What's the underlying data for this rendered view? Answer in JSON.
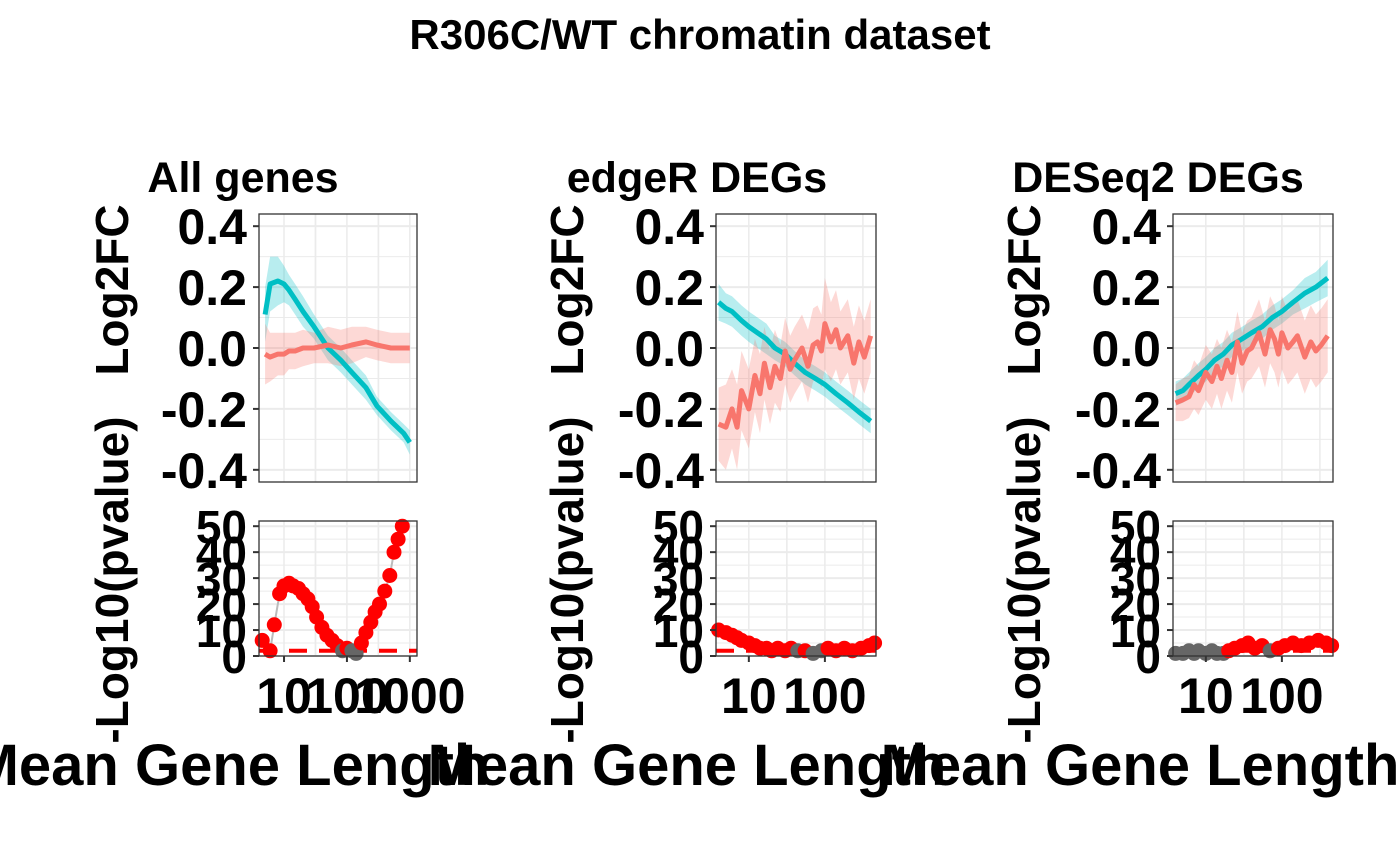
{
  "title": "R306C/WT chromatin dataset",
  "colors": {
    "cyan": "#00BFC4",
    "salmon": "#F8766D",
    "grid": "#EBEBEB",
    "sig_point": "#FF0000",
    "nonsig_point": "#666666",
    "threshold": "#FF0000",
    "panel_border": "#333333"
  },
  "labels": {
    "ylab_top": "Log2FC",
    "ylab_bottom": "-Log10(pvalue)",
    "xlab": "Mean Gene Length"
  },
  "chart_data": [
    {
      "type": "line",
      "subtitle": "All genes",
      "x_scale": "log10",
      "xlim": [
        4,
        1300
      ],
      "x_ticks": [
        10,
        100,
        1000
      ],
      "x_tick_labels": [
        "10",
        "100",
        "1000"
      ],
      "top": {
        "ylim": [
          -0.44,
          0.44
        ],
        "y_ticks": [
          -0.4,
          -0.2,
          0.0,
          0.2,
          0.4
        ],
        "y_tick_labels": [
          "-0.4",
          "-0.2",
          "0.0",
          "0.2",
          "0.4"
        ],
        "series": [
          {
            "color": "cyan",
            "x": [
              5,
              6,
              8,
              10,
              12,
              15,
              20,
              30,
              50,
              80,
              120,
              200,
              300,
              500,
              800,
              1000
            ],
            "y": [
              0.11,
              0.21,
              0.22,
              0.21,
              0.19,
              0.16,
              0.12,
              0.07,
              0.0,
              -0.04,
              -0.08,
              -0.13,
              -0.19,
              -0.24,
              -0.28,
              -0.31
            ],
            "band": [
              0.09,
              0.09,
              0.08,
              0.06,
              0.05,
              0.05,
              0.05,
              0.04,
              0.04,
              0.04,
              0.04,
              0.04,
              0.03,
              0.03,
              0.03,
              0.04
            ]
          },
          {
            "color": "salmon",
            "x": [
              5,
              6,
              8,
              10,
              12,
              15,
              20,
              30,
              50,
              80,
              120,
              200,
              300,
              500,
              800,
              1000
            ],
            "y": [
              -0.02,
              -0.03,
              -0.02,
              -0.02,
              -0.01,
              -0.01,
              0.0,
              0.0,
              0.01,
              0.0,
              0.01,
              0.02,
              0.01,
              0.0,
              0.0,
              0.0
            ],
            "band": [
              0.1,
              0.08,
              0.07,
              0.07,
              0.06,
              0.06,
              0.06,
              0.05,
              0.06,
              0.06,
              0.06,
              0.05,
              0.05,
              0.05,
              0.05,
              0.05
            ]
          }
        ]
      },
      "bottom": {
        "ylim": [
          0,
          52
        ],
        "y_ticks": [
          0,
          10,
          20,
          30,
          40,
          50
        ],
        "y_tick_labels": [
          "0",
          "10",
          "20",
          "30",
          "40",
          "50"
        ],
        "threshold": 2,
        "points": {
          "x": [
            4.5,
            6,
            7,
            8.5,
            10,
            12,
            14,
            17,
            20,
            24,
            28,
            33,
            40,
            48,
            58,
            70,
            85,
            100,
            120,
            140,
            170,
            200,
            240,
            280,
            330,
            400,
            480,
            560,
            650,
            760
          ],
          "y": [
            6,
            2,
            12,
            24,
            27,
            28,
            27,
            26,
            24,
            22,
            19,
            15,
            11,
            8,
            6,
            4,
            2,
            3,
            2,
            1,
            5,
            9,
            13,
            17,
            20,
            25,
            31,
            40,
            45,
            50
          ],
          "sig": [
            true,
            true,
            true,
            true,
            true,
            true,
            true,
            true,
            true,
            true,
            true,
            true,
            true,
            true,
            true,
            true,
            false,
            true,
            false,
            false,
            true,
            true,
            true,
            true,
            true,
            true,
            true,
            true,
            true,
            true
          ]
        }
      }
    },
    {
      "type": "line",
      "subtitle": "edgeR DEGs",
      "x_scale": "log10",
      "xlim": [
        3.7,
        470
      ],
      "x_ticks": [
        10,
        100
      ],
      "x_tick_labels": [
        "10",
        "100"
      ],
      "top": {
        "ylim": [
          -0.44,
          0.44
        ],
        "y_ticks": [
          -0.4,
          -0.2,
          0.0,
          0.2,
          0.4
        ],
        "y_tick_labels": [
          "-0.4",
          "-0.2",
          "0.0",
          "0.2",
          "0.4"
        ],
        "series": [
          {
            "color": "cyan",
            "x": [
              4,
              5,
              6,
              8,
              10,
              13,
              17,
              22,
              30,
              40,
              55,
              75,
              100,
              140,
              200,
              280,
              400
            ],
            "y": [
              0.15,
              0.13,
              0.12,
              0.09,
              0.07,
              0.05,
              0.03,
              0.0,
              -0.02,
              -0.05,
              -0.08,
              -0.1,
              -0.12,
              -0.15,
              -0.18,
              -0.21,
              -0.24
            ],
            "band": [
              0.06,
              0.05,
              0.05,
              0.05,
              0.05,
              0.05,
              0.05,
              0.04,
              0.04,
              0.04,
              0.04,
              0.04,
              0.04,
              0.04,
              0.04,
              0.04,
              0.04
            ]
          },
          {
            "color": "salmon",
            "x": [
              4,
              5,
              6,
              7,
              8,
              10,
              12,
              14,
              16,
              19,
              22,
              26,
              30,
              35,
              40,
              50,
              60,
              70,
              80,
              90,
              100,
              120,
              140,
              160,
              200,
              240,
              280,
              330,
              400
            ],
            "y": [
              -0.25,
              -0.26,
              -0.2,
              -0.26,
              -0.14,
              -0.2,
              -0.09,
              -0.15,
              -0.05,
              -0.13,
              -0.06,
              -0.1,
              -0.01,
              -0.07,
              -0.04,
              0.0,
              -0.06,
              0.01,
              0.02,
              -0.01,
              0.08,
              0.02,
              0.06,
              0.0,
              0.04,
              -0.05,
              0.02,
              -0.03,
              0.04
            ],
            "band": [
              0.12,
              0.14,
              0.13,
              0.14,
              0.13,
              0.13,
              0.12,
              0.13,
              0.12,
              0.12,
              0.12,
              0.11,
              0.11,
              0.11,
              0.11,
              0.11,
              0.12,
              0.12,
              0.12,
              0.12,
              0.15,
              0.13,
              0.13,
              0.12,
              0.12,
              0.12,
              0.12,
              0.12,
              0.12
            ]
          }
        ]
      },
      "bottom": {
        "ylim": [
          0,
          52
        ],
        "y_ticks": [
          0,
          10,
          20,
          30,
          40,
          50
        ],
        "y_tick_labels": [
          "0",
          "10",
          "20",
          "30",
          "40",
          "50"
        ],
        "threshold": 2,
        "points": {
          "x": [
            4,
            5,
            6,
            7,
            8,
            10,
            12,
            14,
            17,
            20,
            24,
            30,
            36,
            44,
            55,
            70,
            90,
            110,
            140,
            180,
            230,
            300,
            380,
            450
          ],
          "y": [
            10,
            9,
            8,
            7,
            6,
            5,
            4,
            3,
            3,
            2,
            3,
            2,
            3,
            2,
            2,
            1,
            2,
            3,
            2,
            3,
            2,
            3,
            4,
            5
          ],
          "sig": [
            true,
            true,
            true,
            true,
            true,
            true,
            true,
            true,
            true,
            true,
            true,
            true,
            true,
            false,
            true,
            false,
            false,
            true,
            true,
            true,
            true,
            true,
            true,
            true
          ]
        }
      }
    },
    {
      "type": "line",
      "subtitle": "DESeq2 DEGs",
      "x_scale": "log10",
      "xlim": [
        3.7,
        470
      ],
      "x_ticks": [
        10,
        100
      ],
      "x_tick_labels": [
        "10",
        "100"
      ],
      "top": {
        "ylim": [
          -0.44,
          0.44
        ],
        "y_ticks": [
          -0.4,
          -0.2,
          0.0,
          0.2,
          0.4
        ],
        "y_tick_labels": [
          "-0.4",
          "-0.2",
          "0.0",
          "0.2",
          "0.4"
        ],
        "series": [
          {
            "color": "cyan",
            "x": [
              4,
              5,
              6,
              8,
              10,
              13,
              17,
              22,
              30,
              40,
              55,
              75,
              100,
              140,
              200,
              280,
              400
            ],
            "y": [
              -0.15,
              -0.14,
              -0.12,
              -0.09,
              -0.07,
              -0.04,
              -0.02,
              0.01,
              0.03,
              0.05,
              0.07,
              0.1,
              0.12,
              0.15,
              0.18,
              0.2,
              0.23
            ],
            "band": [
              0.04,
              0.04,
              0.04,
              0.04,
              0.04,
              0.04,
              0.04,
              0.04,
              0.04,
              0.04,
              0.04,
              0.04,
              0.04,
              0.04,
              0.05,
              0.05,
              0.06
            ]
          },
          {
            "color": "salmon",
            "x": [
              4,
              5,
              6,
              7,
              8,
              10,
              12,
              14,
              16,
              19,
              22,
              26,
              30,
              35,
              40,
              50,
              60,
              70,
              80,
              90,
              100,
              120,
              140,
              160,
              200,
              240,
              280,
              330,
              400
            ],
            "y": [
              -0.18,
              -0.17,
              -0.16,
              -0.12,
              -0.14,
              -0.08,
              -0.11,
              -0.06,
              -0.1,
              -0.04,
              -0.08,
              0.02,
              -0.05,
              -0.01,
              0.0,
              0.05,
              -0.02,
              0.06,
              0.03,
              -0.02,
              0.05,
              0.0,
              0.02,
              0.04,
              -0.03,
              0.02,
              -0.01,
              0.01,
              0.04
            ],
            "band": [
              0.06,
              0.07,
              0.07,
              0.08,
              0.08,
              0.09,
              0.09,
              0.09,
              0.1,
              0.1,
              0.1,
              0.1,
              0.1,
              0.1,
              0.1,
              0.11,
              0.11,
              0.11,
              0.11,
              0.11,
              0.12,
              0.12,
              0.12,
              0.12,
              0.12,
              0.12,
              0.12,
              0.12,
              0.12
            ]
          }
        ]
      },
      "bottom": {
        "ylim": [
          0,
          52
        ],
        "y_ticks": [
          0,
          10,
          20,
          30,
          40,
          50
        ],
        "y_tick_labels": [
          "0",
          "10",
          "20",
          "30",
          "40",
          "50"
        ],
        "threshold": 2,
        "points": {
          "x": [
            4,
            5,
            6,
            7,
            8,
            10,
            12,
            14,
            17,
            20,
            24,
            30,
            36,
            44,
            55,
            70,
            90,
            110,
            140,
            180,
            230,
            300,
            380,
            450
          ],
          "y": [
            1,
            1,
            2,
            1,
            2,
            1,
            2,
            1,
            1,
            2,
            3,
            4,
            5,
            3,
            4,
            2,
            3,
            4,
            5,
            4,
            5,
            6,
            5,
            4
          ],
          "sig": [
            false,
            false,
            false,
            false,
            false,
            false,
            false,
            false,
            false,
            true,
            true,
            true,
            true,
            true,
            true,
            false,
            true,
            true,
            true,
            true,
            true,
            true,
            true,
            true
          ]
        }
      }
    }
  ]
}
